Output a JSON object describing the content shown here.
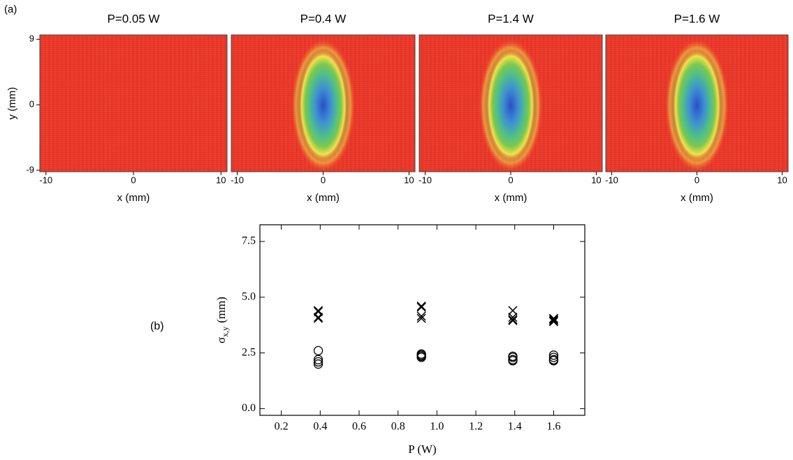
{
  "chart_data": [
    {
      "type": "heatmap",
      "title": "P=0.05 W",
      "panel_label": "(a)",
      "xlabel": "x (mm)",
      "ylabel": "y (mm)",
      "xlim": [
        -10.7,
        10.7
      ],
      "xticks": [
        -10,
        0,
        10
      ],
      "ylim": [
        -9.2,
        9.6
      ],
      "yticks": [
        9,
        0,
        -9
      ]
    },
    {
      "type": "heatmap",
      "title": "P=0.4 W",
      "xlabel": "x (mm)",
      "xlim": [
        -10.7,
        10.7
      ],
      "xticks": [
        -10,
        0,
        10
      ],
      "ylim": [
        -9.2,
        9.6
      ]
    },
    {
      "type": "heatmap",
      "title": "P=1.4 W",
      "xlabel": "x (mm)",
      "xlim": [
        -10.7,
        10.7
      ],
      "xticks": [
        -10,
        0,
        10
      ],
      "ylim": [
        -9.2,
        9.6
      ]
    },
    {
      "type": "heatmap",
      "title": "P=1.6 W",
      "xlabel": "x (mm)",
      "xlim": [
        -10.7,
        10.7
      ],
      "xticks": [
        -10,
        0,
        10
      ],
      "ylim": [
        -9.2,
        9.6
      ]
    },
    {
      "type": "scatter",
      "panel_label": "(b)",
      "xlabel": "P (W)",
      "ylabel_symbol": "σ",
      "ylabel_subscript": "x,y",
      "ylabel_unit": "(mm)",
      "xlim": [
        0.09,
        1.76
      ],
      "ylim": [
        -0.3,
        8.25
      ],
      "xticks": [
        0.2,
        0.4,
        0.6,
        0.8,
        {
          "value": 1,
          "label": "1.0"
        },
        1.2,
        1.4,
        1.6
      ],
      "yticks": [
        {
          "value": 0,
          "label": "0.0"
        },
        2.5,
        {
          "value": 5,
          "label": "5.0"
        },
        7.5
      ],
      "series": [
        {
          "marker": "x",
          "color": "#000000",
          "x": [
            0.39,
            0.39,
            0.39,
            0.39,
            0.92,
            0.92,
            0.92,
            0.92,
            1.39,
            1.39,
            1.39,
            1.39,
            1.6,
            1.6,
            1.6,
            1.6
          ],
          "values": [
            4.4,
            4.35,
            4.1,
            4.05,
            4.6,
            4.55,
            4.15,
            4.05,
            4.4,
            4.1,
            4.0,
            3.95,
            4.05,
            4.0,
            3.95,
            3.9
          ]
        },
        {
          "marker": "o",
          "color": "#000000",
          "x": [
            0.39,
            0.39,
            0.39,
            0.39,
            0.92,
            0.92,
            0.92,
            0.92,
            1.39,
            1.39,
            1.39,
            1.39,
            1.6,
            1.6,
            1.6,
            1.6
          ],
          "values": [
            2.6,
            2.2,
            2.1,
            2.0,
            2.45,
            2.4,
            2.35,
            2.3,
            2.35,
            2.3,
            2.2,
            2.15,
            2.4,
            2.3,
            2.2,
            2.15
          ]
        }
      ]
    }
  ]
}
